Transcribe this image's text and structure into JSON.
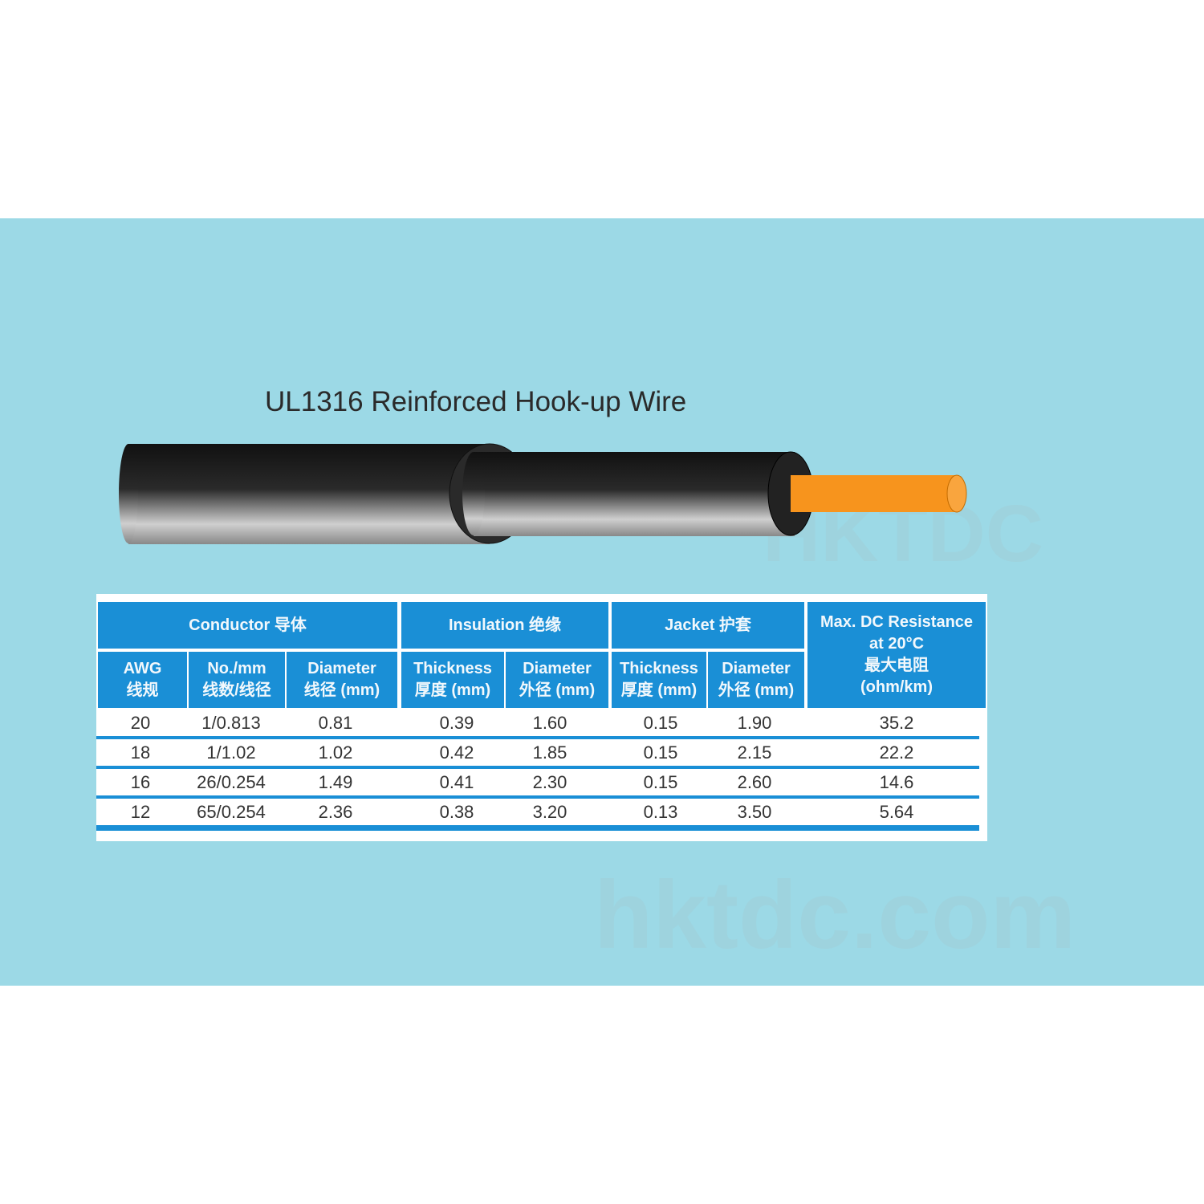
{
  "title": "UL1316 Reinforced Hook-up Wire",
  "watermark": {
    "logo": "HKTDC",
    "site": "hktdc.com"
  },
  "colors": {
    "background": "#9cd9e6",
    "header": "#1a8fd6",
    "conductor": "#f7941d",
    "jacket": "#1e1e1e"
  },
  "table": {
    "groups": {
      "conductor": "Conductor 导体",
      "insulation": "Insulation 绝缘",
      "jacket": "Jacket 护套",
      "resistance": [
        "Max. DC Resistance",
        "at 20°C",
        "最大电阻",
        "(ohm/km)"
      ]
    },
    "columns": [
      [
        "AWG",
        "线规"
      ],
      [
        "No./mm",
        "线数/线径"
      ],
      [
        "Diameter",
        "线径 (mm)"
      ],
      [
        "Thickness",
        "厚度 (mm)"
      ],
      [
        "Diameter",
        "外径 (mm)"
      ],
      [
        "Thickness",
        "厚度 (mm)"
      ],
      [
        "Diameter",
        "外径 (mm)"
      ]
    ],
    "rows": [
      [
        "20",
        "1/0.813",
        "0.81",
        "0.39",
        "1.60",
        "0.15",
        "1.90",
        "35.2"
      ],
      [
        "18",
        "1/1.02",
        "1.02",
        "0.42",
        "1.85",
        "0.15",
        "2.15",
        "22.2"
      ],
      [
        "16",
        "26/0.254",
        "1.49",
        "0.41",
        "2.30",
        "0.15",
        "2.60",
        "14.6"
      ],
      [
        "12",
        "65/0.254",
        "2.36",
        "0.38",
        "3.20",
        "0.13",
        "3.50",
        "5.64"
      ]
    ]
  }
}
